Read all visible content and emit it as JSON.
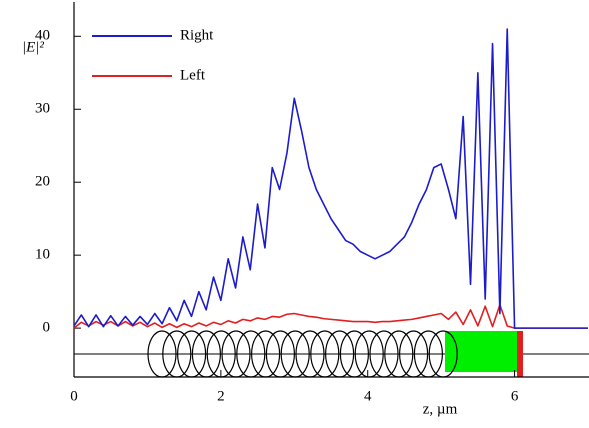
{
  "chart_data": {
    "type": "line",
    "y_label": "|E|²",
    "x_label": "z, µm",
    "x": [
      0,
      0.1,
      0.2,
      0.3,
      0.4,
      0.5,
      0.6,
      0.7,
      0.8,
      0.9,
      1,
      1.1,
      1.2,
      1.3,
      1.4,
      1.5,
      1.6,
      1.7,
      1.8,
      1.9,
      2,
      2.1,
      2.2,
      2.3,
      2.4,
      2.5,
      2.6,
      2.7,
      2.8,
      2.9,
      3,
      3.1,
      3.2,
      3.3,
      3.4,
      3.5,
      3.6,
      3.7,
      3.8,
      3.9,
      4,
      4.1,
      4.2,
      4.3,
      4.4,
      4.5,
      4.6,
      4.7,
      4.8,
      4.9,
      5,
      5.1,
      5.2,
      5.3,
      5.4,
      5.5,
      5.6,
      5.7,
      5.8,
      5.9,
      6,
      6.1,
      6.2,
      6.3,
      6.4,
      6.5,
      6.6,
      6.7,
      6.8,
      6.9,
      7
    ],
    "series": [
      {
        "name": "Right",
        "color": "#1c1ccc",
        "values": [
          0.3,
          1.8,
          0.2,
          1.8,
          0.2,
          1.7,
          0.3,
          1.6,
          0.4,
          1.6,
          0.5,
          2.0,
          0.6,
          2.8,
          1.0,
          3.8,
          1.6,
          5.0,
          2.5,
          7.0,
          3.8,
          9.5,
          5.5,
          12.5,
          8.0,
          17,
          11,
          22,
          19,
          24,
          31.5,
          27,
          22,
          19,
          17,
          15,
          13.5,
          12,
          11.5,
          10.5,
          10,
          9.5,
          10,
          10.5,
          11.5,
          12.5,
          14.5,
          17,
          19,
          22,
          22.5,
          19,
          15,
          29,
          6,
          35,
          4,
          39,
          2,
          41,
          0,
          0,
          0,
          0,
          0,
          0,
          0,
          0,
          0,
          0,
          0
        ]
      },
      {
        "name": "Left",
        "color": "#e02020",
        "values": [
          0,
          0.8,
          0.3,
          0.9,
          0.4,
          0.9,
          0.3,
          0.9,
          0.3,
          0.8,
          0.2,
          0.7,
          0.1,
          0.6,
          0.1,
          0.6,
          0.2,
          0.7,
          0.3,
          0.8,
          0.5,
          1.0,
          0.7,
          1.2,
          1.0,
          1.4,
          1.2,
          1.6,
          1.5,
          1.9,
          2.0,
          1.8,
          1.6,
          1.5,
          1.3,
          1.2,
          1.1,
          1.0,
          0.9,
          0.9,
          0.9,
          0.8,
          0.9,
          0.9,
          1.0,
          1.1,
          1.2,
          1.4,
          1.6,
          1.8,
          2.0,
          1.2,
          2.2,
          0.5,
          2.5,
          0.3,
          3.0,
          0.2,
          3.2,
          0.3,
          0,
          0,
          0,
          0,
          0,
          0,
          0,
          0,
          0,
          0,
          0
        ]
      }
    ],
    "xlim": [
      0,
      7
    ],
    "xticks": [
      0,
      2,
      4,
      6
    ],
    "ylim": [
      -6.7,
      44.7
    ],
    "yticks": [
      0,
      10,
      20,
      30,
      40
    ]
  }
}
